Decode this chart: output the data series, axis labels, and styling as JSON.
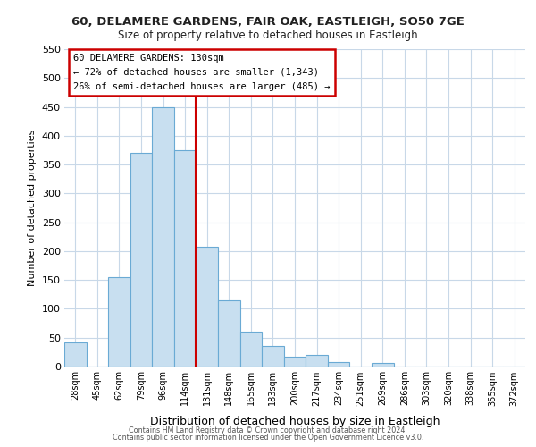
{
  "title": "60, DELAMERE GARDENS, FAIR OAK, EASTLEIGH, SO50 7GE",
  "subtitle": "Size of property relative to detached houses in Eastleigh",
  "xlabel": "Distribution of detached houses by size in Eastleigh",
  "ylabel": "Number of detached properties",
  "bar_labels": [
    "28sqm",
    "45sqm",
    "62sqm",
    "79sqm",
    "96sqm",
    "114sqm",
    "131sqm",
    "148sqm",
    "165sqm",
    "183sqm",
    "200sqm",
    "217sqm",
    "234sqm",
    "251sqm",
    "269sqm",
    "286sqm",
    "303sqm",
    "320sqm",
    "338sqm",
    "355sqm",
    "372sqm"
  ],
  "bar_heights": [
    42,
    0,
    155,
    370,
    450,
    375,
    207,
    115,
    60,
    35,
    17,
    20,
    8,
    0,
    6,
    0,
    0,
    0,
    0,
    0,
    0
  ],
  "property_line_x": 5.5,
  "annotation_line1": "60 DELAMERE GARDENS: 130sqm",
  "annotation_line2": "← 72% of detached houses are smaller (1,343)",
  "annotation_line3": "26% of semi-detached houses are larger (485) →",
  "bar_color": "#c8dff0",
  "bar_edge_color": "#6aaad4",
  "property_line_color": "#cc0000",
  "annotation_box_edge_color": "#cc0000",
  "background_color": "#ffffff",
  "grid_color": "#c8d8e8",
  "footer_line1": "Contains HM Land Registry data © Crown copyright and database right 2024.",
  "footer_line2": "Contains public sector information licensed under the Open Government Licence v3.0.",
  "ylim": [
    0,
    550
  ],
  "yticks": [
    0,
    50,
    100,
    150,
    200,
    250,
    300,
    350,
    400,
    450,
    500,
    550
  ]
}
